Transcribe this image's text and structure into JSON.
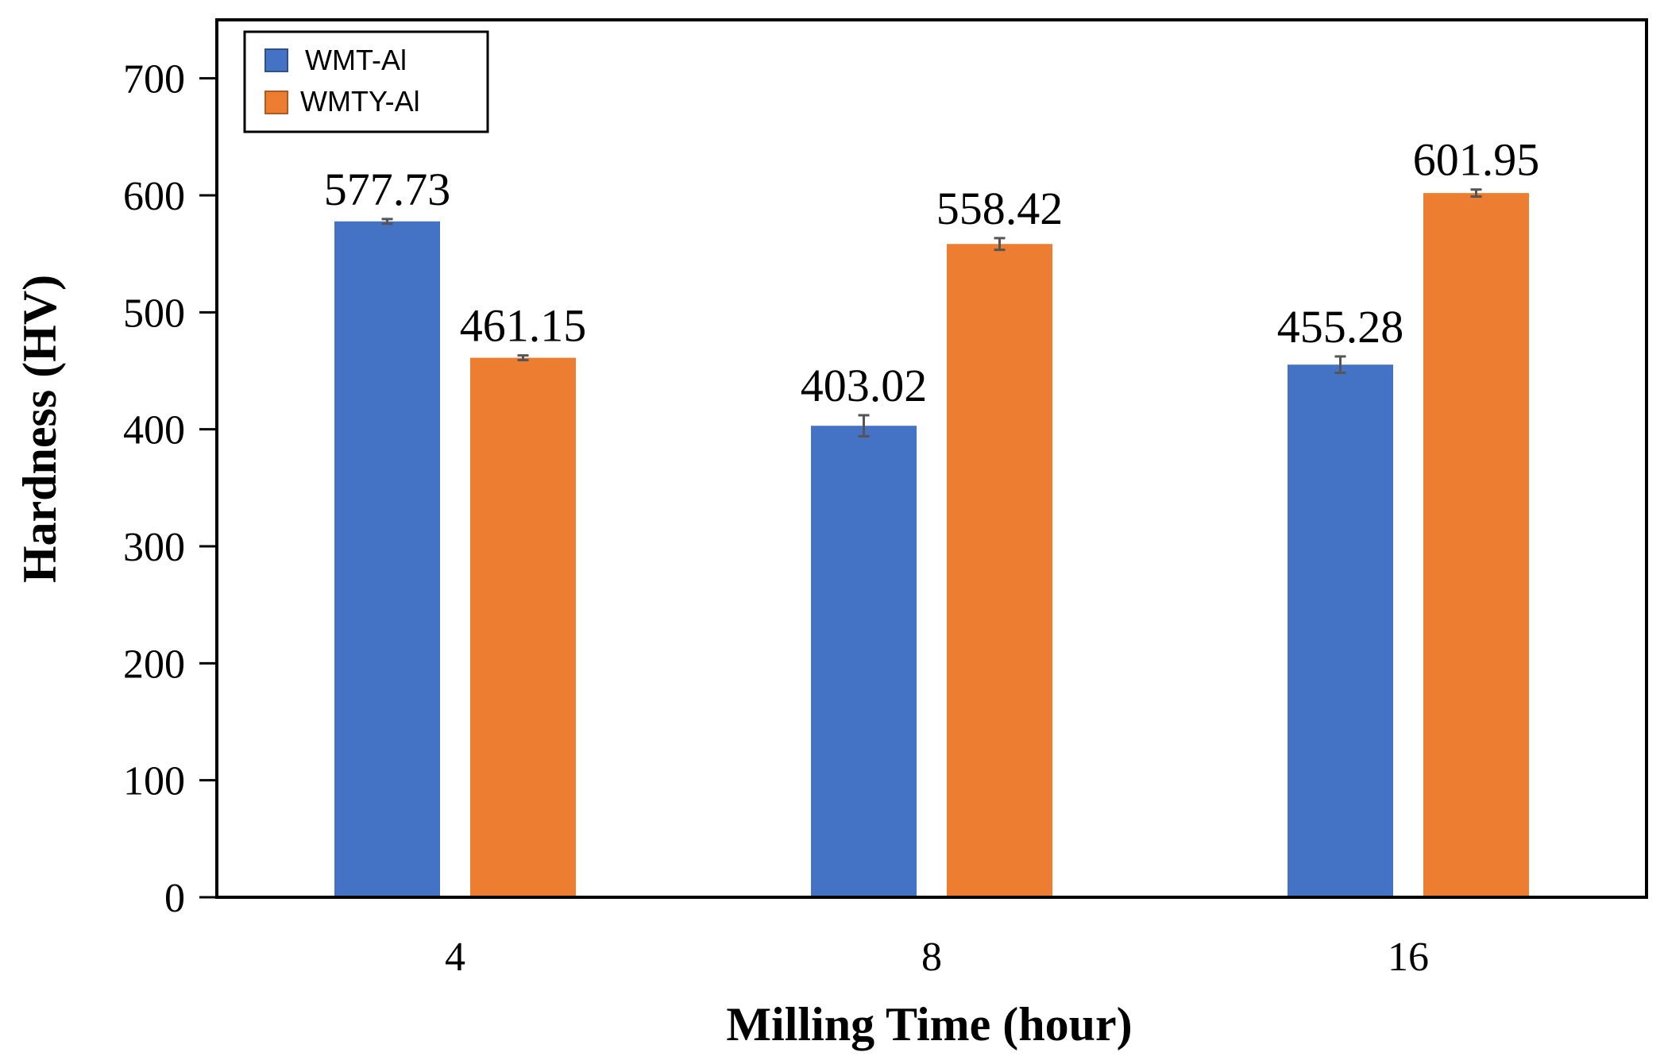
{
  "chart_data": {
    "type": "bar",
    "title": "",
    "xlabel": "Milling Time (hour)",
    "ylabel": "Hardness (HV)",
    "categories": [
      "4",
      "8",
      "16"
    ],
    "ylim": [
      0,
      750
    ],
    "yticks": [
      0,
      100,
      200,
      300,
      400,
      500,
      600,
      700
    ],
    "ytick_labels": [
      "0",
      "100",
      "200",
      "300",
      "400",
      "500",
      "600",
      "700"
    ],
    "grid": false,
    "legend_position": "top-left",
    "series": [
      {
        "name": "WMT-Al",
        "color": "#4472C4",
        "values": [
          577.73,
          403.02,
          455.28
        ],
        "labels": [
          "577.73",
          "403.02",
          "455.28"
        ],
        "errors": [
          2,
          9,
          7
        ]
      },
      {
        "name": "WMTY-Al",
        "color": "#ED7D31",
        "values": [
          461.15,
          558.42,
          601.95
        ],
        "labels": [
          "461.15",
          "558.42",
          "601.95"
        ],
        "errors": [
          2,
          5,
          3
        ]
      }
    ]
  }
}
